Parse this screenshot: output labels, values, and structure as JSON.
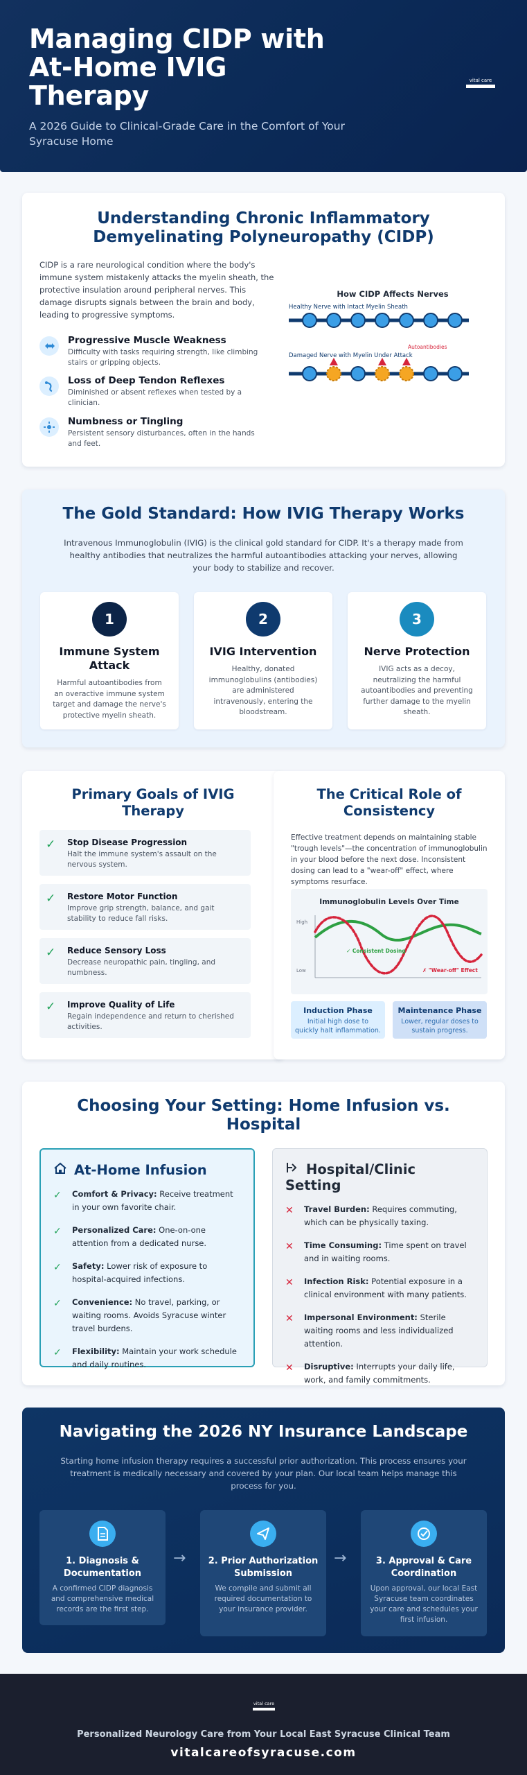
{
  "header": {
    "title": "Managing CIDP with At-Home IVIG Therapy",
    "subtitle": "A 2026 Guide to Clinical-Grade Care in the Comfort of Your Syracuse Home",
    "logo_text": "vital care"
  },
  "understanding": {
    "title": "Understanding Chronic Inflammatory Demyelinating Polyneuropathy (CIDP)",
    "intro": "CIDP is a rare neurological condition where the body's immune system mistakenly attacks the myelin sheath, the protective insulation around peripheral nerves. This damage disrupts signals between the brain and body, leading to progressive symptoms.",
    "symptoms": [
      {
        "icon": "muscle-icon",
        "title": "Progressive Muscle Weakness",
        "desc": "Difficulty with tasks requiring strength, like climbing stairs or gripping objects."
      },
      {
        "icon": "reflex-icon",
        "title": "Loss of Deep Tendon Reflexes",
        "desc": "Diminished or absent reflexes when tested by a clinician."
      },
      {
        "icon": "tingle-icon",
        "title": "Numbness or Tingling",
        "desc": "Persistent sensory disturbances, often in the hands and feet."
      }
    ],
    "diagram": {
      "title": "How CIDP Affects Nerves",
      "healthy_label": "Healthy Nerve with Intact Myelin Sheath",
      "damaged_label": "Damaged Nerve with Myelin Under Attack",
      "antibody_label": "Autoantibodies",
      "colors": {
        "myelin": "#3b9ee6",
        "nerve": "#0f3a6e",
        "damaged": "#f5a623",
        "antibody": "#d6243b"
      }
    }
  },
  "ivig": {
    "title": "The Gold Standard: How IVIG Therapy Works",
    "lead": "Intravenous Immunoglobulin (IVIG) is the clinical gold standard for CIDP. It's a therapy made from healthy antibodies that neutralizes the harmful autoantibodies attacking your nerves, allowing your body to stabilize and recover.",
    "steps": [
      {
        "num": "1",
        "title": "Immune System Attack",
        "desc": "Harmful autoantibodies from an overactive immune system target and damage the nerve's protective myelin sheath.",
        "color": "#0c2447"
      },
      {
        "num": "2",
        "title": "IVIG Intervention",
        "desc": "Healthy, donated immunoglobulins (antibodies) are administered intravenously, entering the bloodstream.",
        "color": "#0f3a6e"
      },
      {
        "num": "3",
        "title": "Nerve Protection",
        "desc": "IVIG acts as a decoy, neutralizing the harmful autoantibodies and preventing further damage to the myelin sheath.",
        "color": "#1a8bbf"
      }
    ]
  },
  "goals": {
    "title": "Primary Goals of IVIG Therapy",
    "items": [
      {
        "title": "Stop Disease Progression",
        "desc": "Halt the immune system's assault on the nervous system."
      },
      {
        "title": "Restore Motor Function",
        "desc": "Improve grip strength, balance, and gait stability to reduce fall risks."
      },
      {
        "title": "Reduce Sensory Loss",
        "desc": "Decrease neuropathic pain, tingling, and numbness."
      },
      {
        "title": "Improve Quality of Life",
        "desc": "Regain independence and return to cherished activities."
      }
    ]
  },
  "consistency": {
    "title": "The Critical Role of Consistency",
    "text": "Effective treatment depends on maintaining stable \"trough levels\"—the concentration of immunoglobulin in your blood before the next dose. Inconsistent dosing can lead to a \"wear-off\" effect, where symptoms resurface.",
    "chart_data": {
      "type": "line",
      "title": "Immunoglobulin Levels Over Time",
      "ylabel_high": "High",
      "ylabel_low": "Low",
      "series": [
        {
          "name": "✓ Consistent Dosing",
          "color": "#2ea043",
          "style": "solid"
        },
        {
          "name": "✗ \"Wear-off\" Effect",
          "color": "#d6243b",
          "style": "dotted"
        }
      ]
    },
    "phases": [
      {
        "title": "Induction Phase",
        "desc": "Initial high dose to quickly halt inflammation."
      },
      {
        "title": "Maintenance Phase",
        "desc": "Lower, regular doses to sustain progress."
      }
    ]
  },
  "setting": {
    "title": "Choosing Your Setting: Home Infusion vs. Hospital",
    "home": {
      "title": "At-Home Infusion",
      "items": [
        {
          "bold": "Comfort & Privacy:",
          "text": " Receive treatment in your own favorite chair."
        },
        {
          "bold": "Personalized Care:",
          "text": " One-on-one attention from a dedicated nurse."
        },
        {
          "bold": "Safety:",
          "text": " Lower risk of exposure to hospital-acquired infections."
        },
        {
          "bold": "Convenience:",
          "text": " No travel, parking, or waiting rooms. Avoids Syracuse winter travel burdens."
        },
        {
          "bold": "Flexibility:",
          "text": " Maintain your work schedule and daily routines."
        }
      ]
    },
    "hospital": {
      "title": "Hospital/Clinic Setting",
      "items": [
        {
          "bold": "Travel Burden:",
          "text": " Requires commuting, which can be physically taxing."
        },
        {
          "bold": "Time Consuming:",
          "text": " Time spent on travel and in waiting rooms."
        },
        {
          "bold": "Infection Risk:",
          "text": " Potential exposure in a clinical environment with many patients."
        },
        {
          "bold": "Impersonal Environment:",
          "text": " Sterile waiting rooms and less individualized attention."
        },
        {
          "bold": "Disruptive:",
          "text": " Interrupts your daily life, work, and family commitments."
        }
      ]
    }
  },
  "insurance": {
    "title": "Navigating the 2026 NY Insurance Landscape",
    "lead": "Starting home infusion therapy requires a successful prior authorization. This process ensures your treatment is medically necessary and covered by your plan. Our local team helps manage this process for you.",
    "steps": [
      {
        "icon": "document-icon",
        "title": "1. Diagnosis & Documentation",
        "desc": "A confirmed CIDP diagnosis and comprehensive medical records are the first step."
      },
      {
        "icon": "send-icon",
        "title": "2. Prior Authorization Submission",
        "desc": "We compile and submit all required documentation to your insurance provider."
      },
      {
        "icon": "check-circle-icon",
        "title": "3. Approval & Care Coordination",
        "desc": "Upon approval, our local East Syracuse team coordinates your care and schedules your first infusion."
      }
    ]
  },
  "footer": {
    "logo_text": "vital care",
    "tagline": "Personalized Neurology Care from Your Local East Syracuse Clinical Team",
    "url": "vitalcareofsyracuse.com"
  }
}
